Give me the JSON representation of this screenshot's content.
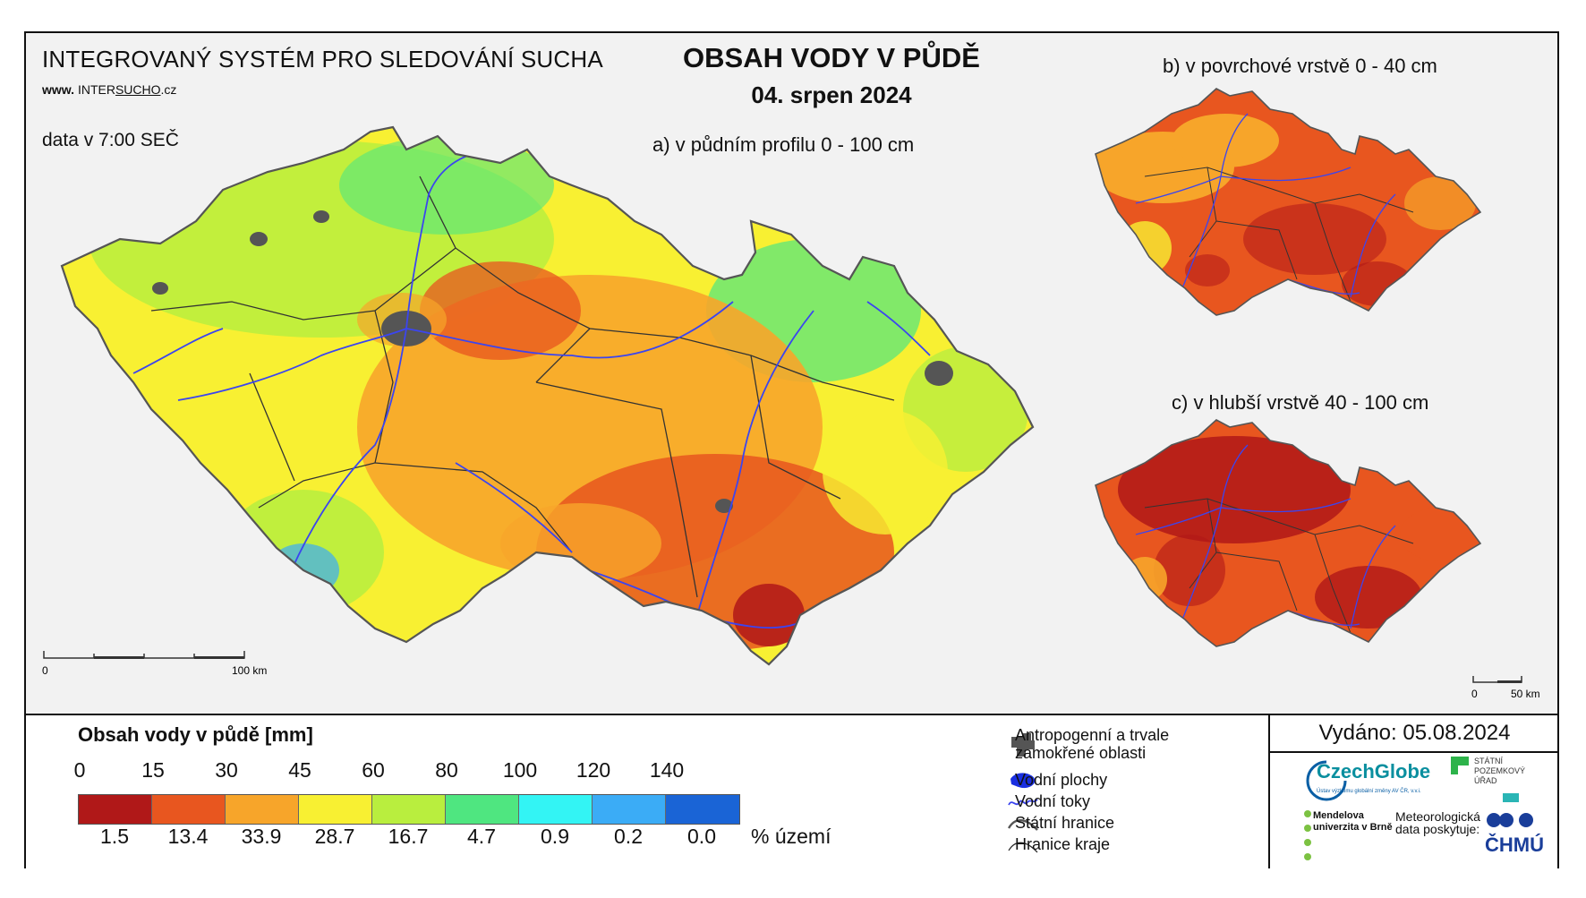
{
  "header": {
    "system_title": "INTEGROVANÝ SYSTÉM PRO SLEDOVÁNÍ SUCHA",
    "website_prefix": "www.",
    "website_inter": "INTER",
    "website_sucho": "SUCHO",
    "website_suffix": ".cz",
    "data_time": "data v 7:00 SEČ",
    "main_title": "OBSAH VODY V PŮDĚ",
    "date": "04. srpen 2024"
  },
  "maps": {
    "a_label": "a) v půdním profilu 0 - 100 cm",
    "b_label": "b) v povrchové vrstvě 0 - 40 cm",
    "c_label": "c) v hlubší vrstvě 40 - 100 cm",
    "scale_main": {
      "start": "0",
      "end": "100 km"
    },
    "scale_small": {
      "start": "0",
      "end": "50 km"
    }
  },
  "legend": {
    "title": "Obsah vody v půdě  [mm]",
    "ticks": [
      "0",
      "15",
      "30",
      "45",
      "60",
      "80",
      "100",
      "120",
      "140"
    ],
    "colors": [
      "#b01818",
      "#e8561f",
      "#f7a52a",
      "#f8f032",
      "#b9ee3e",
      "#4fe680",
      "#33f4f4",
      "#3bacf6",
      "#1a64d6"
    ],
    "percentages": [
      "1.5",
      "13.4",
      "33.9",
      "28.7",
      "16.7",
      "4.7",
      "0.9",
      "0.2",
      "0.0"
    ],
    "percent_unit": "% území",
    "symbols": [
      {
        "icon": "urban-area-icon",
        "label": "Antropogenní a trvale zamokřené oblasti"
      },
      {
        "icon": "water-body-icon",
        "label": "Vodní plochy"
      },
      {
        "icon": "river-icon",
        "label": "Vodní toky"
      },
      {
        "icon": "state-border-icon",
        "label": "Státní hranice"
      },
      {
        "icon": "region-border-icon",
        "label": "Hranice kraje"
      }
    ]
  },
  "issued": "Vydáno: 05.08.2024",
  "logos": {
    "czechglobe": "CzechGlobe",
    "czechglobe_sub": "Ústav výzkumu globální změny AV ČR, v.v.i.",
    "spu": "STÁTNÍ POZEMKOVÝ ÚŘAD",
    "mendel": "Mendelova univerzita v Brně",
    "meteo": "Meteorologická data poskytuje:",
    "chmu": "ČHMÚ"
  }
}
